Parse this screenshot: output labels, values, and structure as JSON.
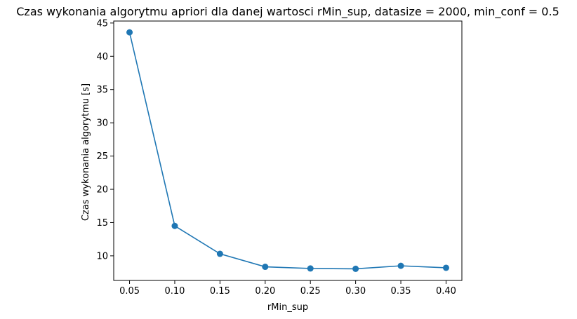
{
  "chart_data": {
    "type": "line",
    "title": "Czas wykonania algorytmu apriori dla danej wartosci rMin_sup, datasize = 2000, min_conf = 0.5",
    "xlabel": "rMin_sup",
    "ylabel": "Czas wykonania algorytmu [s]",
    "x": [
      0.05,
      0.1,
      0.15,
      0.2,
      0.25,
      0.3,
      0.35,
      0.4
    ],
    "series": [
      {
        "values": [
          43.6,
          14.5,
          10.3,
          8.35,
          8.1,
          8.05,
          8.5,
          8.2
        ]
      }
    ],
    "xlim": [
      0.0325,
      0.4175
    ],
    "ylim": [
      6.3,
      45.3
    ],
    "xticks": [
      0.05,
      0.1,
      0.15,
      0.2,
      0.25,
      0.3,
      0.35,
      0.4
    ],
    "xtick_labels": [
      "0.05",
      "0.10",
      "0.15",
      "0.20",
      "0.25",
      "0.30",
      "0.35",
      "0.40"
    ],
    "yticks": [
      10,
      15,
      20,
      25,
      30,
      35,
      40,
      45
    ],
    "ytick_labels": [
      "10",
      "15",
      "20",
      "25",
      "30",
      "35",
      "40",
      "45"
    ],
    "grid": false,
    "marker": "circle",
    "color": "#1f77b4"
  }
}
